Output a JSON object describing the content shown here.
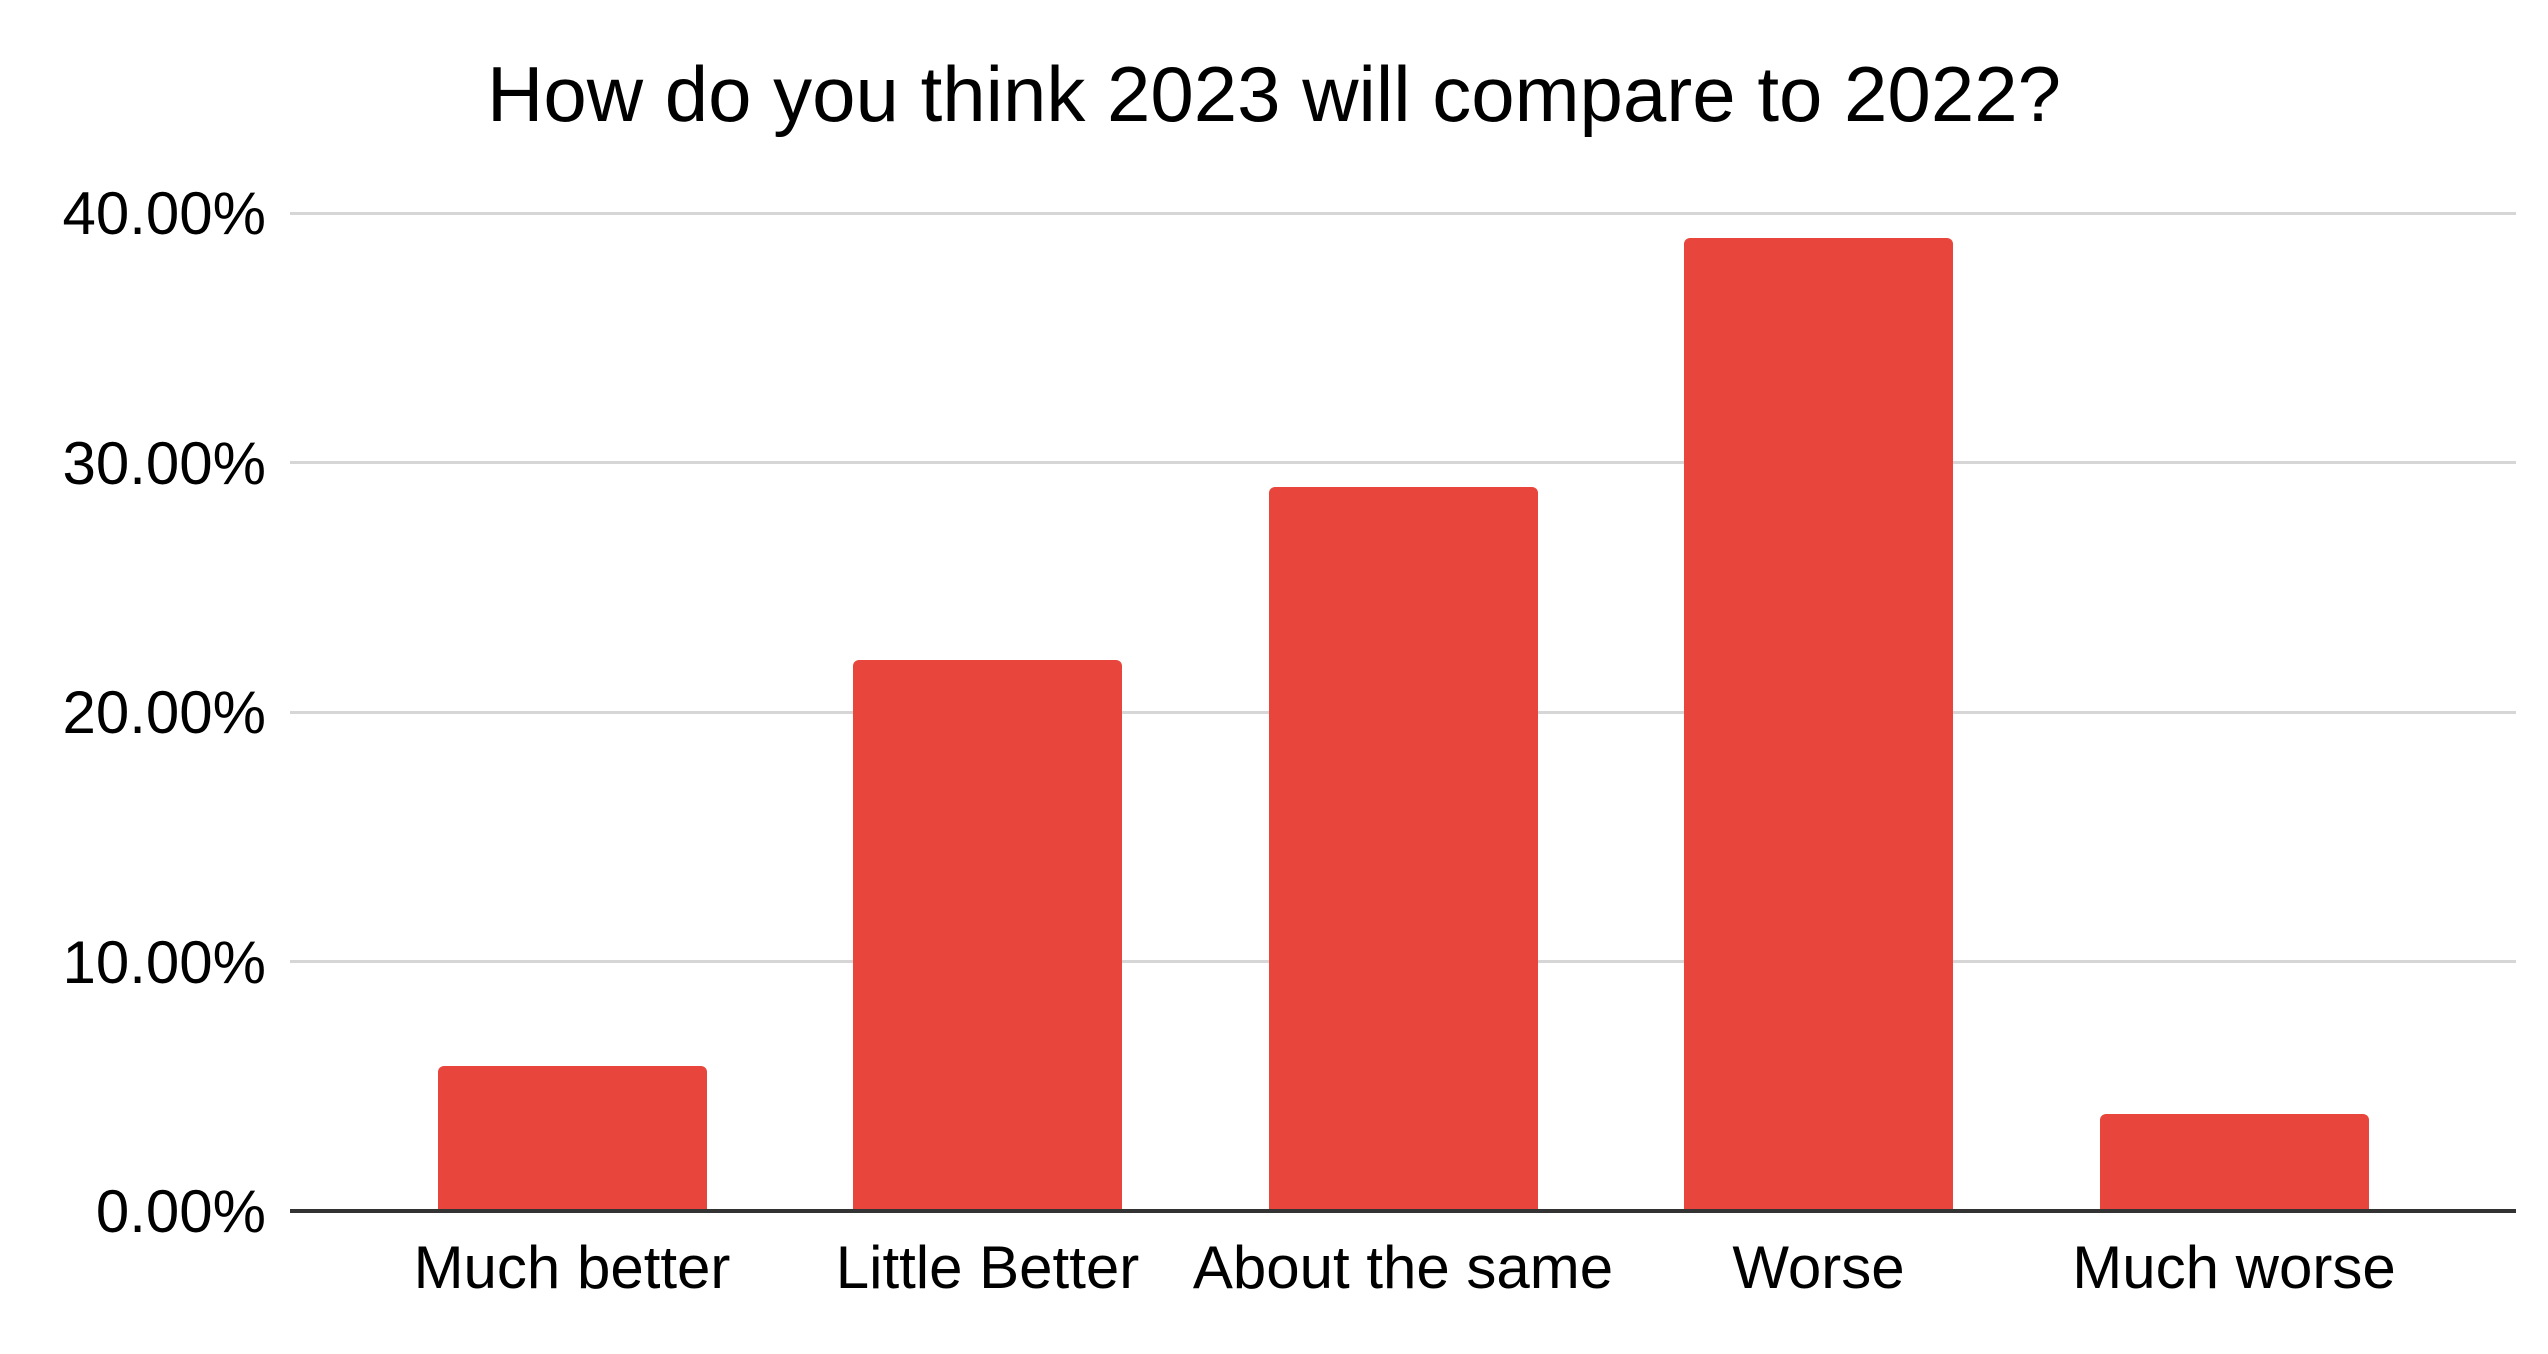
{
  "page": {
    "background": "#FFFFFF"
  },
  "chart_data": {
    "type": "bar",
    "title": "How do you think 2023 will compare to 2022?",
    "categories": [
      "Much better",
      "Little Better",
      "About the same",
      "Worse",
      "Much worse"
    ],
    "values": [
      5.8,
      22.1,
      29,
      39,
      3.9
    ],
    "value_unit": "percent",
    "xlabel": "",
    "ylabel": "",
    "ylim": [
      0,
      40
    ],
    "yticks": [
      0,
      10,
      20,
      30,
      40
    ],
    "ytick_labels": [
      "0.00%",
      "10.00%",
      "20.00%",
      "30.00%",
      "40.00%"
    ],
    "grid": "horizontal",
    "legend": "none",
    "series_color": "#E8463C",
    "gridline_color": "#D6D6D6",
    "axis_color": "#333333",
    "text_color": "#000000"
  }
}
